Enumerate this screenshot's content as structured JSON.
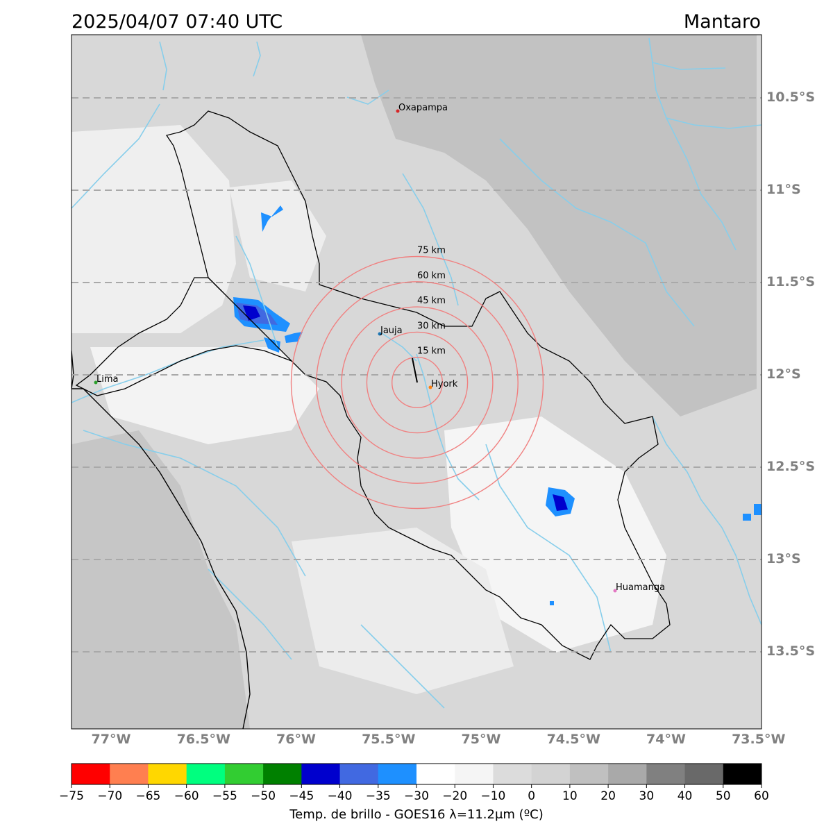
{
  "header": {
    "timestamp": "2025/04/07 07:40 UTC",
    "region": "Mantaro"
  },
  "map": {
    "lat_gridlines": [
      {
        "lat": -10.5,
        "label": "10.5°S"
      },
      {
        "lat": -11.0,
        "label": "11°S"
      },
      {
        "lat": -11.5,
        "label": "11.5°S"
      },
      {
        "lat": -12.0,
        "label": "12°S"
      },
      {
        "lat": -12.5,
        "label": "12.5°S"
      },
      {
        "lat": -13.0,
        "label": "13°S"
      },
      {
        "lat": -13.5,
        "label": "13.5°S"
      }
    ],
    "lon_ticks": [
      {
        "lon": -77.0,
        "label": "77°W"
      },
      {
        "lon": -76.5,
        "label": "76.5°W"
      },
      {
        "lon": -76.0,
        "label": "76°W"
      },
      {
        "lon": -75.5,
        "label": "75.5°W"
      },
      {
        "lon": -75.0,
        "label": "75°W"
      },
      {
        "lon": -74.5,
        "label": "74.5°W"
      },
      {
        "lon": -74.0,
        "label": "74°W"
      },
      {
        "lon": -73.5,
        "label": "73.5°W"
      }
    ],
    "cities": [
      {
        "name": "Oxapampa",
        "color": "#d62728"
      },
      {
        "name": "Jauja",
        "color": "#1f77b4"
      },
      {
        "name": "Hyork",
        "color": "#ff7f0e"
      },
      {
        "name": "Lima",
        "color": "#2ca02c"
      },
      {
        "name": "Huamanga",
        "color": "#e377c2"
      }
    ],
    "range_rings": [
      {
        "label": "15 km"
      },
      {
        "label": "30 km"
      },
      {
        "label": "45 km"
      },
      {
        "label": "60 km"
      },
      {
        "label": "75 km"
      }
    ],
    "colors": {
      "ring": "#f08080",
      "river": "#87ceeb",
      "border": "#000000",
      "gridline": "#a9a9a9"
    }
  },
  "colorbar": {
    "label": "Temp. de brillo - GOES16 λ=11.2μm (ºC)",
    "ticks": [
      "−75",
      "−70",
      "−65",
      "−60",
      "−55",
      "−50",
      "−45",
      "−40",
      "−35",
      "−30",
      "−20",
      "−10",
      "0",
      "10",
      "20",
      "30",
      "40",
      "50",
      "60"
    ],
    "colors": [
      "#ff0000",
      "#ff7f50",
      "#ffd700",
      "#00ff7f",
      "#32cd32",
      "#008000",
      "#0000cd",
      "#4169e1",
      "#1e90ff",
      "#ffffff",
      "#f5f5f5",
      "#dcdcdc",
      "#d3d3d3",
      "#c0c0c0",
      "#a9a9a9",
      "#808080",
      "#696969",
      "#000000"
    ]
  }
}
